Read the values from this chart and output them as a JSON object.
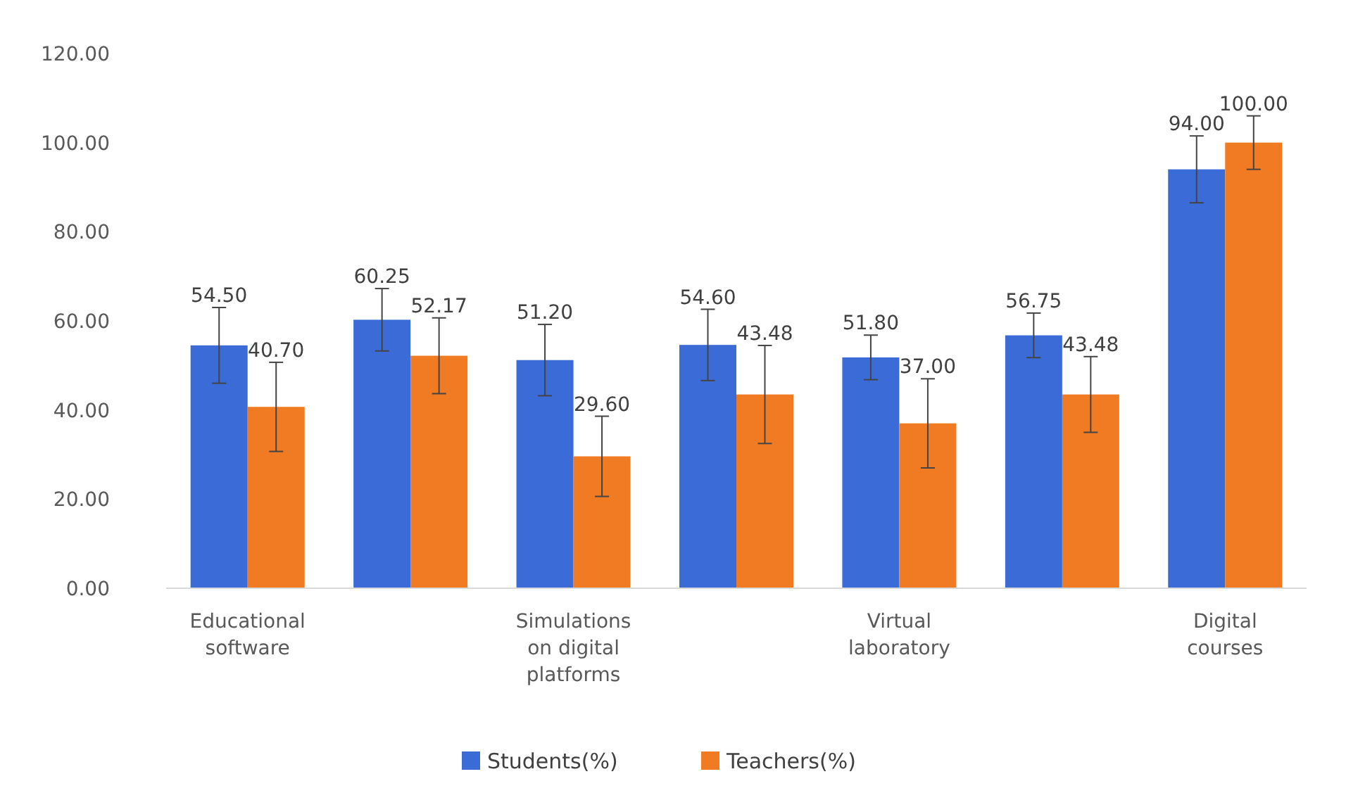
{
  "chart_data": {
    "type": "bar",
    "categories": [
      "Educational software",
      null,
      "Simulations on digital platforms",
      null,
      "Virtual laboratory",
      null,
      "Digital courses"
    ],
    "series": [
      {
        "name": "Students(%)",
        "color": "#3a6bd6",
        "values": [
          54.5,
          60.25,
          51.2,
          54.6,
          51.8,
          56.75,
          94
        ],
        "value_labels": [
          "54.50",
          "60.25",
          "51.20",
          "54.60",
          "51.80",
          "56.75",
          "94.00"
        ],
        "errors": [
          8.5,
          7,
          8,
          8,
          5,
          5,
          7.5
        ]
      },
      {
        "name": "Teachers(%)",
        "color": "#f07b22",
        "values": [
          40.7,
          52.17,
          29.6,
          43.48,
          37,
          43.48,
          100
        ],
        "value_labels": [
          "40.70",
          "52.17",
          "29.60",
          "43.48",
          "37.00",
          "43.48",
          "100.00"
        ],
        "errors": [
          10,
          8.5,
          9,
          11,
          10,
          8.5,
          6
        ]
      }
    ],
    "ylim": [
      0,
      120
    ],
    "yticks": [
      {
        "value": 0,
        "label": "0.00"
      },
      {
        "value": 20,
        "label": "20.00"
      },
      {
        "value": 40,
        "label": "40.00"
      },
      {
        "value": 60,
        "label": "60.00"
      },
      {
        "value": 80,
        "label": "80.00"
      },
      {
        "value": 100,
        "label": "100.00"
      },
      {
        "value": 120,
        "label": "120.00"
      }
    ],
    "legend": "bottom"
  }
}
